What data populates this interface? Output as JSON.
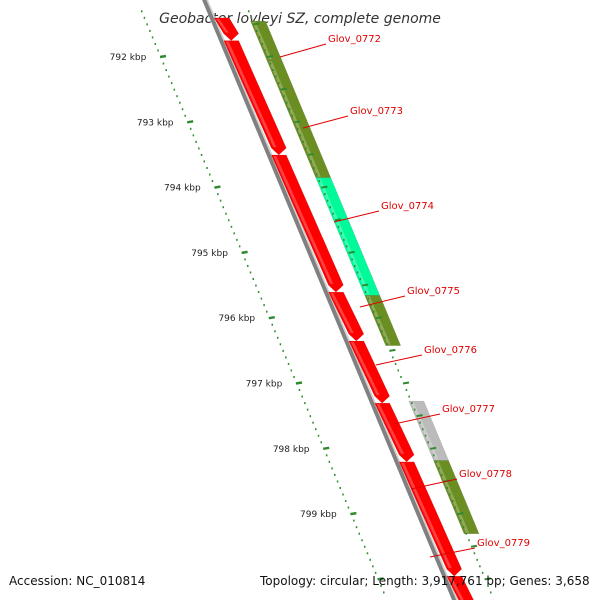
{
  "title": "Geobacter lovleyi SZ, complete genome",
  "accession": "Accession: NC_010814",
  "summary": "Topology: circular; Length: 3,917,761 bp; Genes: 3,658",
  "ticks": [
    {
      "label": "792 kbp",
      "kbp": 792
    },
    {
      "label": "793 kbp",
      "kbp": 793
    },
    {
      "label": "794 kbp",
      "kbp": 794
    },
    {
      "label": "795 kbp",
      "kbp": 795
    },
    {
      "label": "796 kbp",
      "kbp": 796
    },
    {
      "label": "797 kbp",
      "kbp": 797
    },
    {
      "label": "798 kbp",
      "kbp": 798
    },
    {
      "label": "799 kbp",
      "kbp": 799
    }
  ],
  "genes": [
    {
      "label": "Glov_0772",
      "start": 791.45,
      "end": 792.05,
      "color": "#6b8e23"
    },
    {
      "label": "Glov_0773",
      "start": 792.05,
      "end": 793.85,
      "color": "#6b8e23"
    },
    {
      "label": "Glov_0774",
      "start": 793.85,
      "end": 795.65,
      "color": "#00fa9a"
    },
    {
      "label": "Glov_0775",
      "start": 795.65,
      "end": 796.42,
      "color": "#6b8e23"
    },
    {
      "label": "Glov_0776",
      "start": null,
      "end": null,
      "color": "#6b8e23"
    },
    {
      "label": "Glov_0777",
      "start": 797.27,
      "end": 798.18,
      "color": "#bbbbbb"
    },
    {
      "label": "Glov_0778",
      "start": 798.18,
      "end": 799.3,
      "color": "#6b8e23"
    },
    {
      "label": "Glov_0779",
      "start": null,
      "end": null,
      "color": "#6b8e23"
    }
  ],
  "cds_segments": [
    {
      "start": 791.4,
      "end": 791.75
    },
    {
      "start": 791.75,
      "end": 793.5
    },
    {
      "start": 793.5,
      "end": 795.6
    },
    {
      "start": 795.6,
      "end": 796.35
    },
    {
      "start": 796.35,
      "end": 797.3
    },
    {
      "start": 797.3,
      "end": 798.2
    },
    {
      "start": 798.2,
      "end": 799.95
    },
    {
      "start": 799.95,
      "end": 800.6
    }
  ],
  "colors": {
    "cds": "#ff0000",
    "backbone": "#808080",
    "tick": "#2e8b2e",
    "label": "#e00000"
  }
}
